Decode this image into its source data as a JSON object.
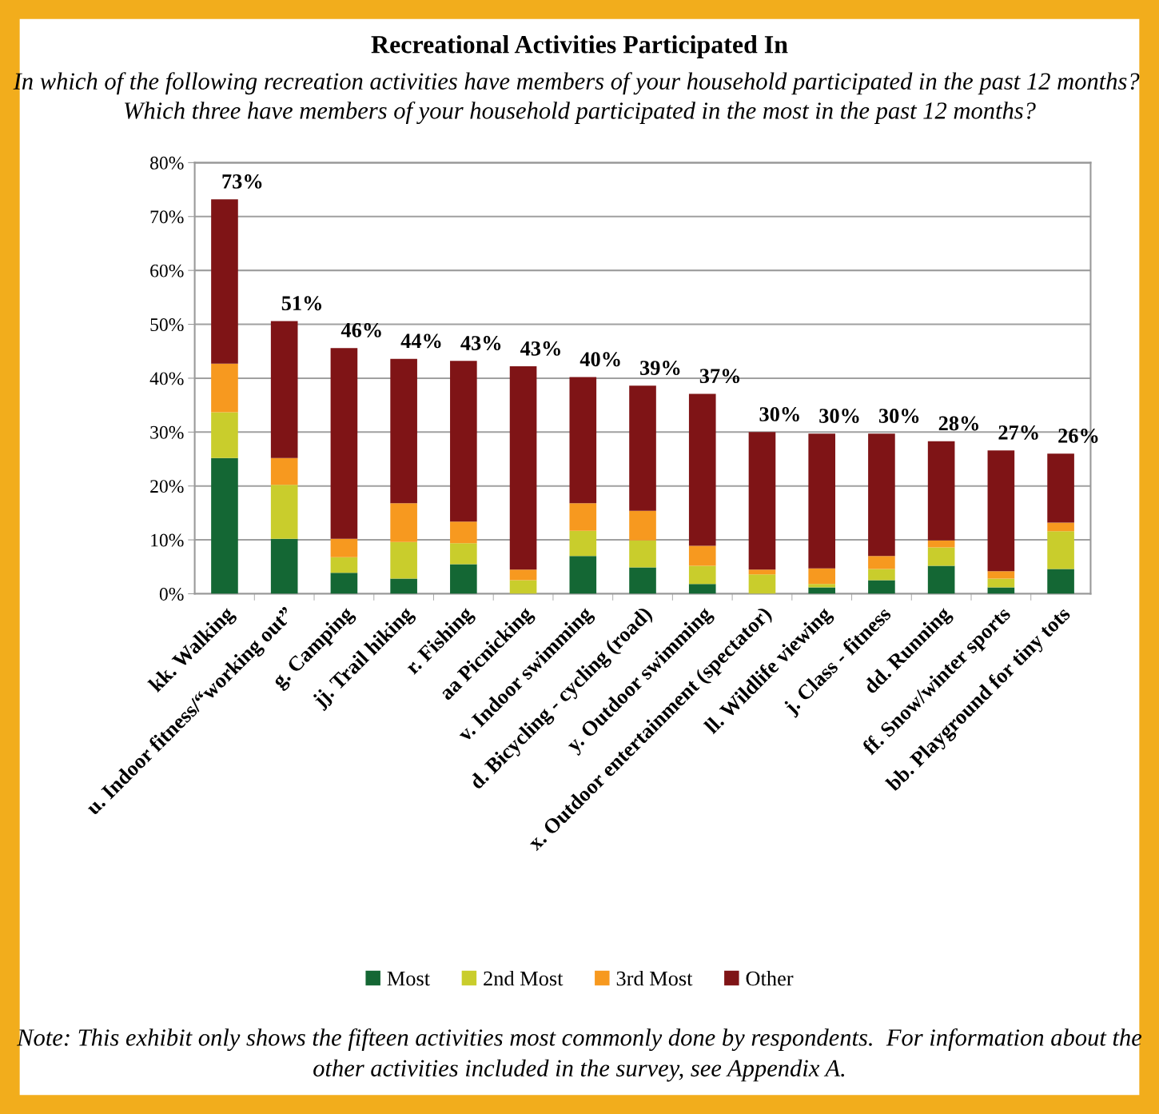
{
  "chart_data": {
    "type": "bar",
    "stacked": true,
    "title": "Recreational Activities Participated In",
    "subtitle": "In which of the following recreation activities have members of your household participated in the past 12 months?  Which three have members of your household participated in the most in the past 12 months?",
    "categories": [
      "kk. Walking",
      "u. Indoor fitness/“working out”",
      "g. Camping",
      "jj. Trail hiking",
      "r. Fishing",
      "aa Picnicking",
      "v. Indoor swimming",
      "d. Bicycling - cycling (road)",
      "y. Outdoor swimming",
      "x. Outdoor entertainment (spectator)",
      "ll. Wildlife viewing",
      "j. Class - fitness",
      "dd. Running",
      "ff. Snow/winter sports",
      "bb. Playground for tiny tots"
    ],
    "series": [
      {
        "name": "Most",
        "color": "#146734",
        "values": [
          25.2,
          10.2,
          3.9,
          2.8,
          5.5,
          0,
          7.0,
          4.9,
          1.8,
          0,
          1.2,
          2.5,
          5.2,
          1.2,
          4.6
        ]
      },
      {
        "name": "2nd Most",
        "color": "#c9cd2c",
        "values": [
          8.5,
          10.0,
          2.9,
          6.8,
          3.9,
          2.5,
          4.7,
          5.0,
          3.4,
          3.6,
          0.6,
          2.1,
          3.4,
          1.6,
          7.0
        ]
      },
      {
        "name": "3rd Most",
        "color": "#f7991f",
        "values": [
          9.0,
          5.0,
          3.4,
          7.2,
          4.0,
          2.0,
          5.1,
          5.5,
          3.7,
          0.9,
          2.9,
          2.4,
          1.3,
          1.4,
          1.6
        ]
      },
      {
        "name": "Other",
        "color": "#7f1416",
        "values": [
          30.5,
          25.4,
          35.4,
          26.8,
          29.8,
          37.7,
          23.4,
          23.2,
          28.2,
          25.5,
          25.0,
          22.7,
          18.4,
          22.4,
          12.8
        ]
      }
    ],
    "totals": [
      "73%",
      "51%",
      "46%",
      "44%",
      "43%",
      "43%",
      "40%",
      "39%",
      "37%",
      "30%",
      "30%",
      "30%",
      "28%",
      "27%",
      "26%"
    ],
    "ylim": [
      0,
      80
    ],
    "yticks": [
      {
        "value": 0,
        "label": "0%"
      },
      {
        "value": 10,
        "label": "10%"
      },
      {
        "value": 20,
        "label": "20%"
      },
      {
        "value": 30,
        "label": "30%"
      },
      {
        "value": 40,
        "label": "40%"
      },
      {
        "value": 50,
        "label": "50%"
      },
      {
        "value": 60,
        "label": "60%"
      },
      {
        "value": 70,
        "label": "70%"
      },
      {
        "value": 80,
        "label": "80%"
      }
    ],
    "grid": "y",
    "legend": "bottom",
    "annotations": [
      "Note: This exhibit only shows the fifteen activities most commonly done by respondents.  For information about the other activities included in the survey, see Appendix A."
    ]
  }
}
